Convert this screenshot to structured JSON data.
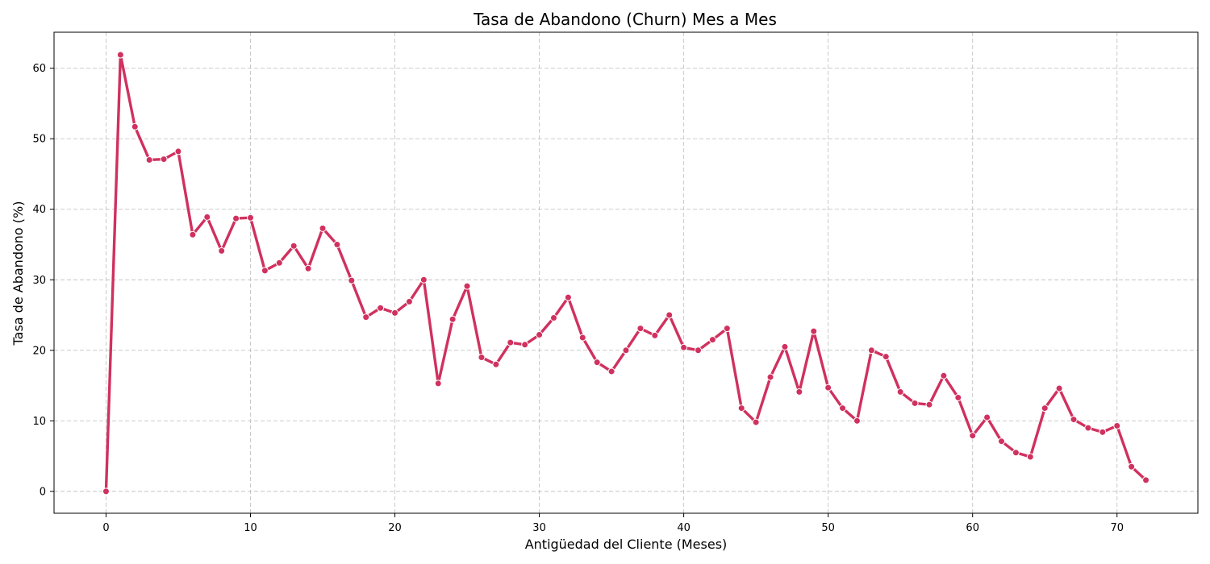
{
  "chart_data": {
    "type": "line",
    "title": "Tasa de Abandono (Churn) Mes a Mes",
    "xlabel": "Antigüedad del Cliente (Meses)",
    "ylabel": "Tasa de Abandono (%)",
    "xlim": [
      -3.6,
      75.6
    ],
    "ylim": [
      -3.1,
      65.1
    ],
    "x_ticks": [
      0,
      10,
      20,
      30,
      40,
      50,
      60,
      70
    ],
    "y_ticks": [
      0,
      10,
      20,
      30,
      40,
      50,
      60
    ],
    "grid": true,
    "color": "#d0315f",
    "marker": "circle",
    "x": [
      0,
      1,
      2,
      3,
      4,
      5,
      6,
      7,
      8,
      9,
      10,
      11,
      12,
      13,
      14,
      15,
      16,
      17,
      18,
      19,
      20,
      21,
      22,
      23,
      24,
      25,
      26,
      27,
      28,
      29,
      30,
      31,
      32,
      33,
      34,
      35,
      36,
      37,
      38,
      39,
      40,
      41,
      42,
      43,
      44,
      45,
      46,
      47,
      48,
      49,
      50,
      51,
      52,
      53,
      54,
      55,
      56,
      57,
      58,
      59,
      60,
      61,
      62,
      63,
      64,
      65,
      66,
      67,
      68,
      69,
      70,
      71,
      72
    ],
    "y": [
      0,
      61.9,
      51.7,
      47.0,
      47.1,
      48.2,
      36.4,
      38.9,
      34.1,
      38.7,
      38.8,
      31.3,
      32.4,
      34.8,
      31.6,
      37.3,
      35.0,
      29.9,
      24.7,
      26.0,
      25.3,
      26.9,
      30.0,
      15.3,
      24.4,
      29.1,
      19.0,
      18.0,
      21.1,
      20.8,
      22.2,
      24.6,
      27.5,
      21.8,
      18.3,
      17.0,
      20.0,
      23.1,
      22.1,
      25.0,
      20.4,
      20.0,
      21.5,
      23.1,
      11.8,
      9.8,
      16.2,
      20.5,
      14.1,
      22.7,
      14.7,
      11.8,
      10.0,
      20.0,
      19.1,
      14.1,
      12.5,
      12.3,
      16.4,
      13.3,
      7.9,
      10.5,
      7.1,
      5.5,
      4.9,
      11.8,
      14.6,
      10.2,
      9.0,
      8.4,
      9.3,
      3.5,
      1.6
    ]
  }
}
